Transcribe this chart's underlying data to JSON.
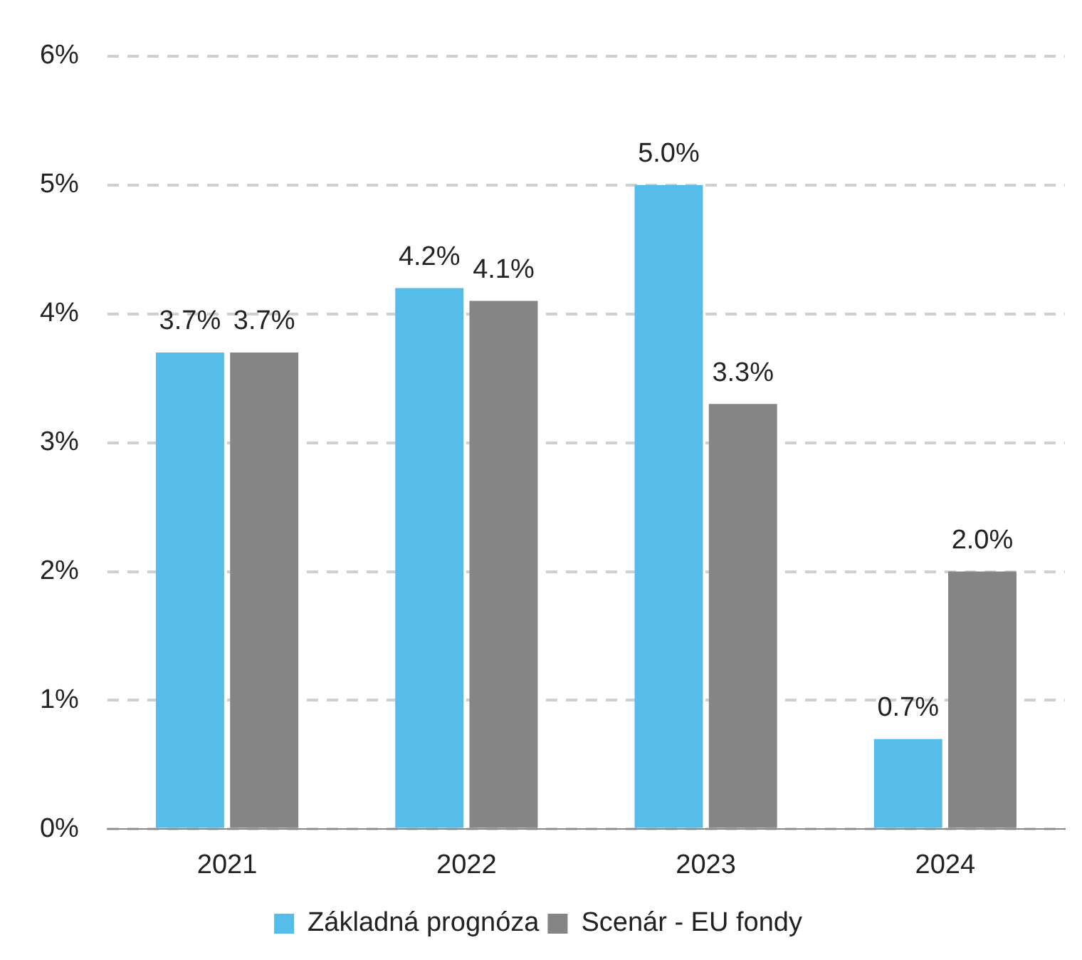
{
  "chart_data": {
    "type": "bar",
    "categories": [
      "2021",
      "2022",
      "2023",
      "2024"
    ],
    "series": [
      {
        "name": "Základná prognóza",
        "color": "#56bde8",
        "values": [
          3.7,
          4.2,
          5.0,
          0.7
        ],
        "value_labels": [
          "3.7%",
          "4.2%",
          "5.0%",
          "0.7%"
        ]
      },
      {
        "name": "Scenár - EU fondy",
        "color": "#858585",
        "values": [
          3.7,
          4.1,
          3.3,
          2.0
        ],
        "value_labels": [
          "3.7%",
          "4.1%",
          "3.3%",
          "2.0%"
        ]
      }
    ],
    "ylim": [
      0,
      6
    ],
    "yticks": [
      {
        "value": 0,
        "label": "0%"
      },
      {
        "value": 1,
        "label": "1%"
      },
      {
        "value": 2,
        "label": "2%"
      },
      {
        "value": 3,
        "label": "3%"
      },
      {
        "value": 4,
        "label": "4%"
      },
      {
        "value": 5,
        "label": "5%"
      },
      {
        "value": 6,
        "label": "6%"
      }
    ],
    "grid": "y",
    "legend": "bottom"
  }
}
